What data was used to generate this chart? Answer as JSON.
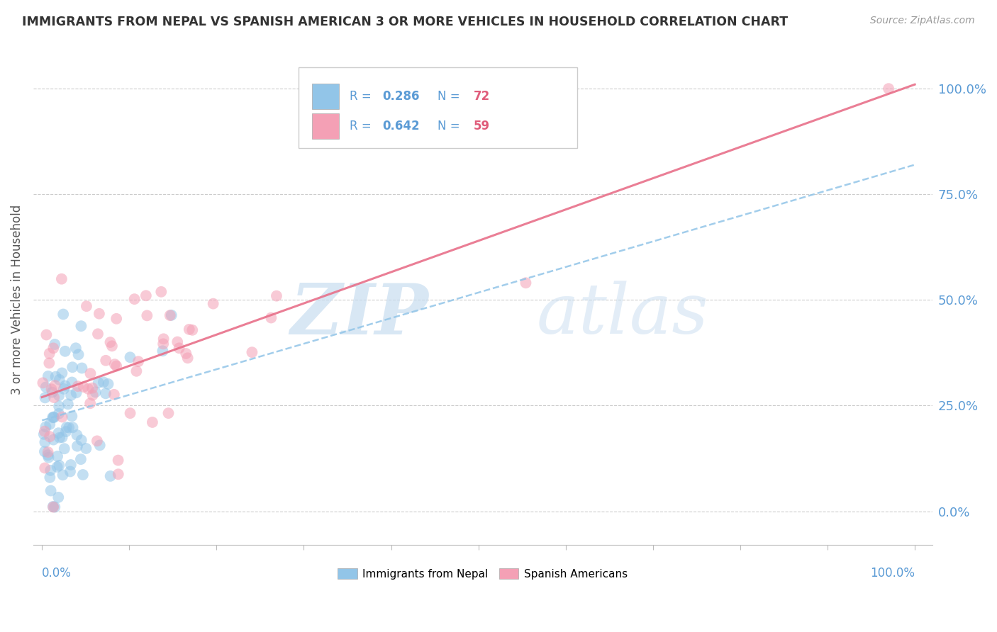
{
  "title": "IMMIGRANTS FROM NEPAL VS SPANISH AMERICAN 3 OR MORE VEHICLES IN HOUSEHOLD CORRELATION CHART",
  "source": "Source: ZipAtlas.com",
  "ylabel": "3 or more Vehicles in Household",
  "right_yticks": [
    0.0,
    0.25,
    0.5,
    0.75,
    1.0
  ],
  "right_yticklabels": [
    "0.0%",
    "25.0%",
    "50.0%",
    "75.0%",
    "100.0%"
  ],
  "legend_labels_bottom": [
    "Immigrants from Nepal",
    "Spanish Americans"
  ],
  "nepal_color": "#92C5E8",
  "spanish_color": "#F4A0B5",
  "nepal_R": 0.286,
  "nepal_N": 72,
  "spanish_R": 0.642,
  "spanish_N": 59,
  "nepal_line_color": "#92C5E8",
  "spanish_line_color": "#E8708A",
  "watermark_zip": "ZIP",
  "watermark_atlas": "atlas",
  "ylim_min": -0.08,
  "ylim_max": 1.08,
  "xlim_min": -0.01,
  "xlim_max": 1.02,
  "nepal_trend_x0": 0.0,
  "nepal_trend_y0": 0.215,
  "nepal_trend_x1": 1.0,
  "nepal_trend_y1": 0.82,
  "spanish_trend_x0": 0.0,
  "spanish_trend_y0": 0.27,
  "spanish_trend_x1": 1.0,
  "spanish_trend_y1": 1.01
}
